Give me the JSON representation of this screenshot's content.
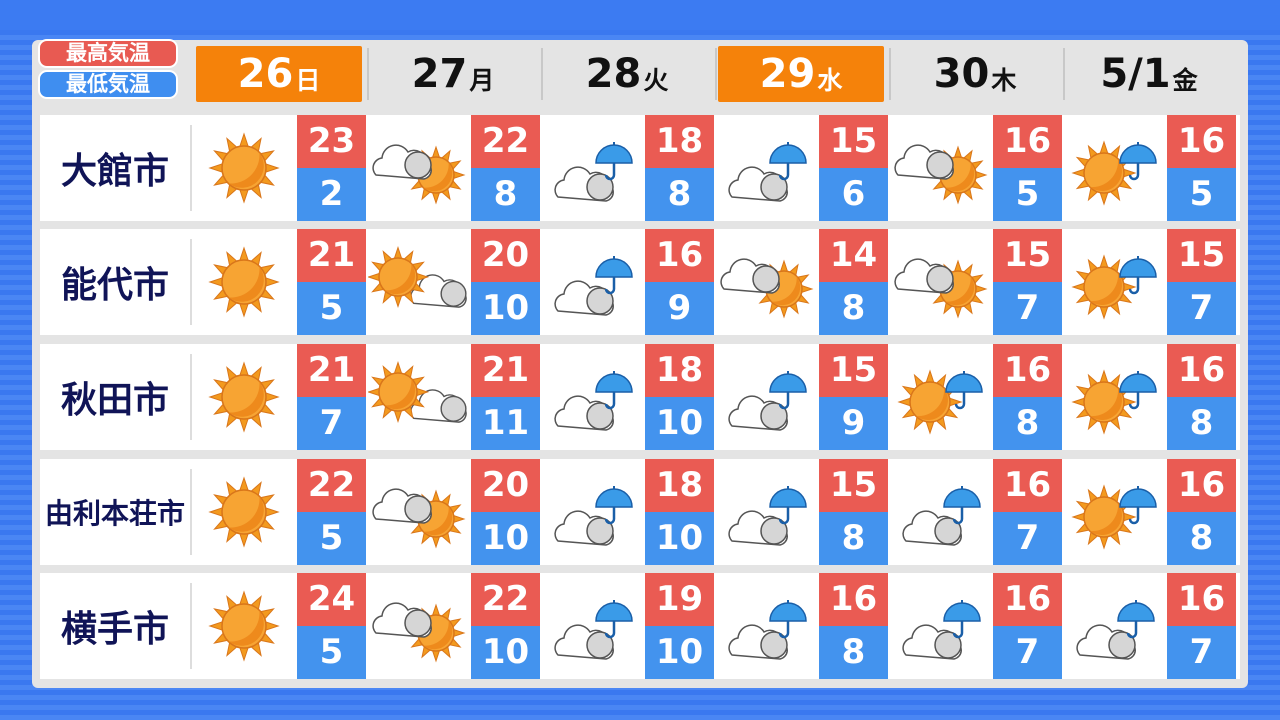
{
  "legend": {
    "high": "最高気温",
    "low": "最低気温",
    "high_color": "#ea5b53",
    "low_color": "#4393ee"
  },
  "days": [
    {
      "num": "26",
      "wd": "日",
      "highlight": true
    },
    {
      "num": "27",
      "wd": "月",
      "highlight": false
    },
    {
      "num": "28",
      "wd": "火",
      "highlight": false
    },
    {
      "num": "29",
      "wd": "水",
      "highlight": true
    },
    {
      "num": "30",
      "wd": "木",
      "highlight": false
    },
    {
      "num": "5/1",
      "wd": "金",
      "highlight": false
    }
  ],
  "cities": [
    {
      "name": "大館市",
      "forecast": [
        {
          "icon": "sunny",
          "high": "23",
          "low": "2"
        },
        {
          "icon": "cloudy-then-sunny",
          "high": "22",
          "low": "8"
        },
        {
          "icon": "cloudy-rain",
          "high": "18",
          "low": "8"
        },
        {
          "icon": "cloudy-rain",
          "high": "15",
          "low": "6"
        },
        {
          "icon": "cloudy-then-sunny",
          "high": "16",
          "low": "5"
        },
        {
          "icon": "sunny-rain",
          "high": "16",
          "low": "5"
        }
      ]
    },
    {
      "name": "能代市",
      "forecast": [
        {
          "icon": "sunny",
          "high": "21",
          "low": "5"
        },
        {
          "icon": "sunny-then-cloudy",
          "high": "20",
          "low": "10"
        },
        {
          "icon": "cloudy-rain",
          "high": "16",
          "low": "9"
        },
        {
          "icon": "cloudy-then-sunny",
          "high": "14",
          "low": "8"
        },
        {
          "icon": "cloudy-then-sunny",
          "high": "15",
          "low": "7"
        },
        {
          "icon": "sunny-rain",
          "high": "15",
          "low": "7"
        }
      ]
    },
    {
      "name": "秋田市",
      "forecast": [
        {
          "icon": "sunny",
          "high": "21",
          "low": "7"
        },
        {
          "icon": "sunny-then-cloudy",
          "high": "21",
          "low": "11"
        },
        {
          "icon": "cloudy-rain",
          "high": "18",
          "low": "10"
        },
        {
          "icon": "cloudy-rain",
          "high": "15",
          "low": "9"
        },
        {
          "icon": "sunny-rain",
          "high": "16",
          "low": "8"
        },
        {
          "icon": "sunny-rain",
          "high": "16",
          "low": "8"
        }
      ]
    },
    {
      "name": "由利本荘市",
      "forecast": [
        {
          "icon": "sunny",
          "high": "22",
          "low": "5"
        },
        {
          "icon": "cloudy-then-sunny",
          "high": "20",
          "low": "10"
        },
        {
          "icon": "cloudy-rain",
          "high": "18",
          "low": "10"
        },
        {
          "icon": "cloudy-rain",
          "high": "15",
          "low": "8"
        },
        {
          "icon": "cloudy-rain",
          "high": "16",
          "low": "7"
        },
        {
          "icon": "sunny-rain",
          "high": "16",
          "low": "8"
        }
      ]
    },
    {
      "name": "横手市",
      "forecast": [
        {
          "icon": "sunny",
          "high": "24",
          "low": "5"
        },
        {
          "icon": "cloudy-then-sunny",
          "high": "22",
          "low": "10"
        },
        {
          "icon": "cloudy-rain",
          "high": "19",
          "low": "10"
        },
        {
          "icon": "cloudy-rain",
          "high": "16",
          "low": "8"
        },
        {
          "icon": "cloudy-rain",
          "high": "16",
          "low": "7"
        },
        {
          "icon": "cloudy-rain",
          "high": "16",
          "low": "7"
        }
      ]
    }
  ]
}
